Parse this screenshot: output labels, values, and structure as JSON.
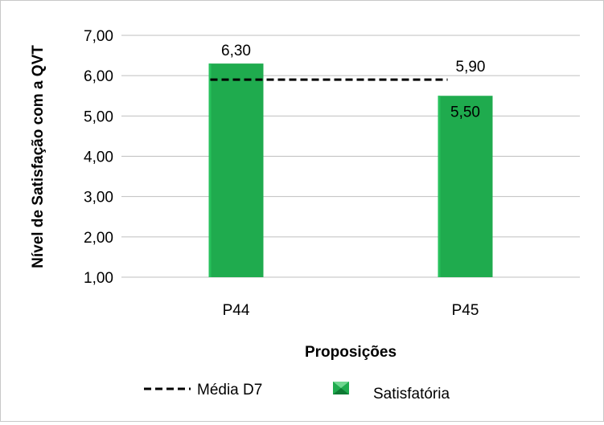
{
  "chart_data": {
    "type": "bar",
    "categories": [
      "P44",
      "P45"
    ],
    "series": [
      {
        "name": "Satisfatória",
        "type": "bar",
        "values": [
          6.3,
          5.5
        ],
        "labels": [
          "6,30",
          "5,50"
        ],
        "color": "#1fab4e"
      },
      {
        "name": "Média D7",
        "type": "line",
        "style": "dashed",
        "values": [
          5.9,
          5.9
        ],
        "label": "5,90",
        "color": "#000000"
      }
    ],
    "xlabel": "Proposições",
    "ylabel": "Nível de Satisfação com a QVT",
    "ylim": [
      1,
      7
    ],
    "yticks": [
      1,
      2,
      3,
      4,
      5,
      6,
      7
    ],
    "ytick_labels": [
      "1,00",
      "2,00",
      "3,00",
      "4,00",
      "5,00",
      "6,00",
      "7,00"
    ],
    "grid": true,
    "legend_position": "bottom"
  }
}
